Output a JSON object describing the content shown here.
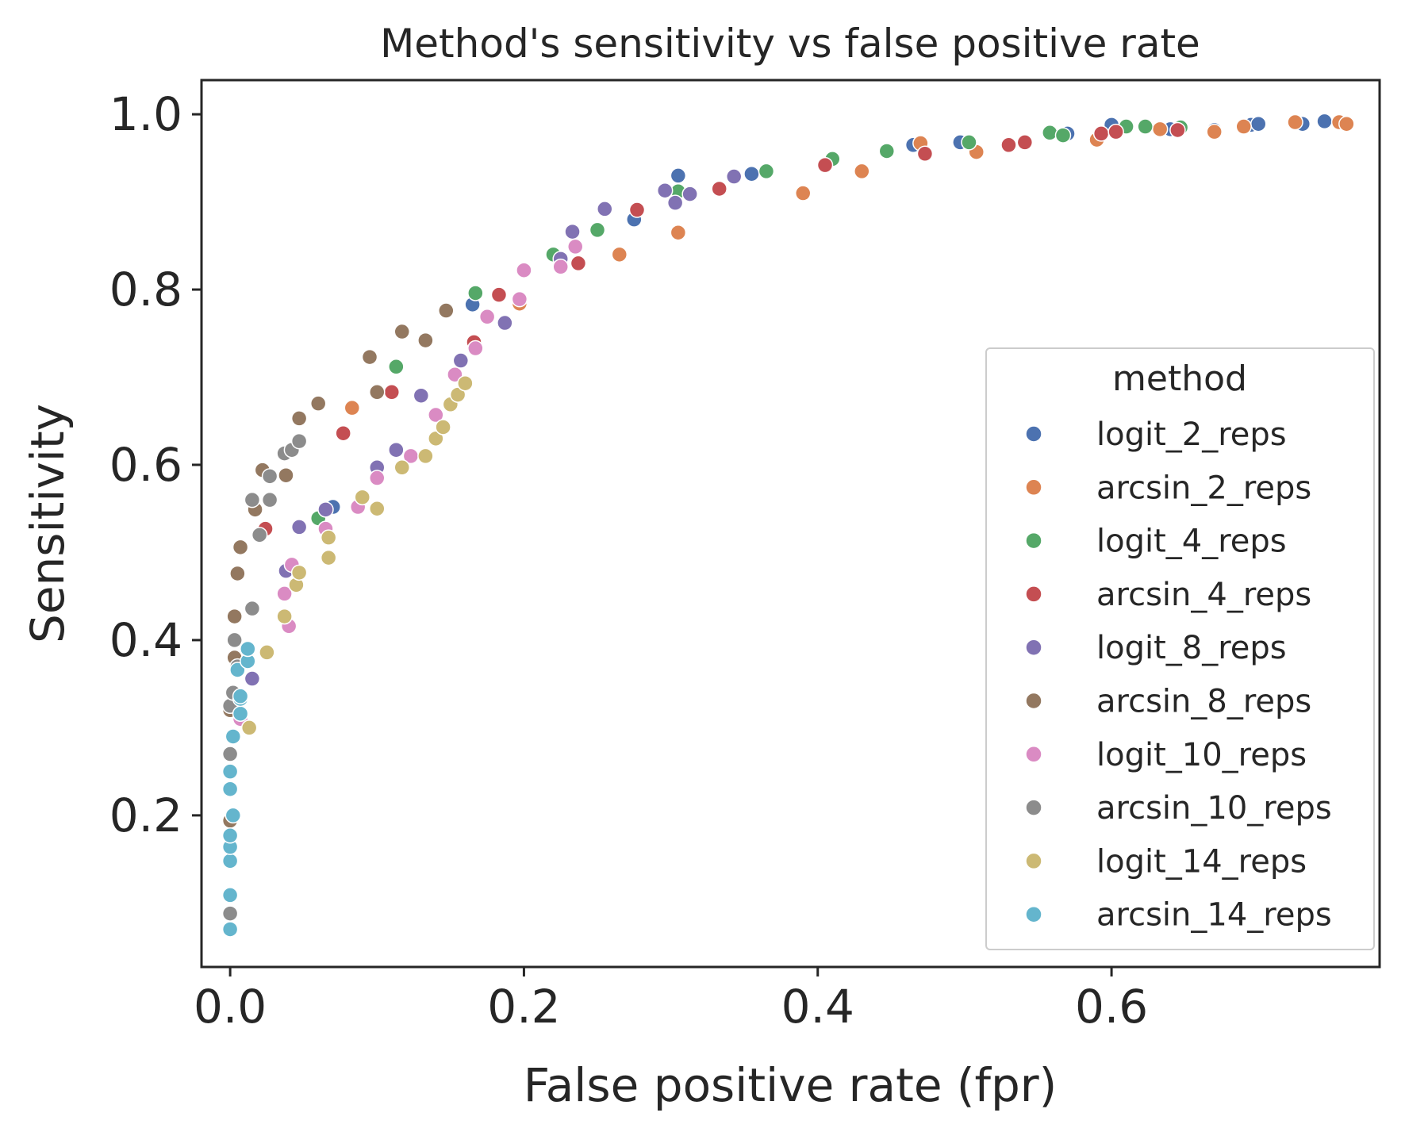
{
  "chart_data": {
    "type": "scatter",
    "title": "Method's sensitivity vs false positive rate",
    "xlabel": "False positive rate (fpr)",
    "ylabel": "Sensitivity",
    "xlim": [
      -0.0195,
      0.7825
    ],
    "ylim": [
      0.027,
      1.039
    ],
    "xticks": [
      0.0,
      0.2,
      0.4,
      0.6
    ],
    "yticks": [
      0.2,
      0.4,
      0.6,
      0.8,
      1.0
    ],
    "xtick_labels": [
      "0.0",
      "0.2",
      "0.4",
      "0.6"
    ],
    "ytick_labels": [
      "0.2",
      "0.4",
      "0.6",
      "0.8",
      "1.0"
    ],
    "grid": false,
    "legend": {
      "title": "method",
      "placement": "center-right"
    },
    "series": [
      {
        "name": "logit_2_reps",
        "color": "#4c72b0",
        "points": [
          [
            0.07,
            0.552
          ],
          [
            0.165,
            0.783
          ],
          [
            0.275,
            0.88
          ],
          [
            0.305,
            0.93
          ],
          [
            0.355,
            0.932
          ],
          [
            0.465,
            0.965
          ],
          [
            0.497,
            0.968
          ],
          [
            0.57,
            0.978
          ],
          [
            0.6,
            0.988
          ],
          [
            0.64,
            0.983
          ],
          [
            0.67,
            0.982
          ],
          [
            0.695,
            0.988
          ],
          [
            0.7,
            0.989
          ],
          [
            0.73,
            0.989
          ],
          [
            0.745,
            0.992
          ]
        ]
      },
      {
        "name": "arcsin_2_reps",
        "color": "#dd8452",
        "points": [
          [
            0.083,
            0.665
          ],
          [
            0.197,
            0.784
          ],
          [
            0.265,
            0.84
          ],
          [
            0.305,
            0.865
          ],
          [
            0.39,
            0.91
          ],
          [
            0.43,
            0.935
          ],
          [
            0.47,
            0.967
          ],
          [
            0.508,
            0.957
          ],
          [
            0.59,
            0.971
          ],
          [
            0.633,
            0.983
          ],
          [
            0.67,
            0.98
          ],
          [
            0.69,
            0.986
          ],
          [
            0.725,
            0.991
          ],
          [
            0.755,
            0.991
          ],
          [
            0.76,
            0.989
          ]
        ]
      },
      {
        "name": "logit_4_reps",
        "color": "#55a868",
        "points": [
          [
            0.06,
            0.539
          ],
          [
            0.113,
            0.712
          ],
          [
            0.167,
            0.796
          ],
          [
            0.22,
            0.84
          ],
          [
            0.25,
            0.868
          ],
          [
            0.305,
            0.912
          ],
          [
            0.365,
            0.935
          ],
          [
            0.41,
            0.949
          ],
          [
            0.447,
            0.958
          ],
          [
            0.503,
            0.968
          ],
          [
            0.558,
            0.979
          ],
          [
            0.567,
            0.976
          ],
          [
            0.61,
            0.986
          ],
          [
            0.623,
            0.986
          ],
          [
            0.647,
            0.985
          ]
        ]
      },
      {
        "name": "arcsin_4_reps",
        "color": "#c44e52",
        "points": [
          [
            0.024,
            0.527
          ],
          [
            0.077,
            0.636
          ],
          [
            0.11,
            0.683
          ],
          [
            0.166,
            0.74
          ],
          [
            0.183,
            0.794
          ],
          [
            0.237,
            0.83
          ],
          [
            0.277,
            0.891
          ],
          [
            0.333,
            0.915
          ],
          [
            0.405,
            0.942
          ],
          [
            0.473,
            0.955
          ],
          [
            0.53,
            0.965
          ],
          [
            0.541,
            0.968
          ],
          [
            0.593,
            0.978
          ],
          [
            0.603,
            0.98
          ],
          [
            0.645,
            0.982
          ]
        ]
      },
      {
        "name": "logit_8_reps",
        "color": "#8172b3",
        "points": [
          [
            0.015,
            0.356
          ],
          [
            0.038,
            0.479
          ],
          [
            0.047,
            0.529
          ],
          [
            0.065,
            0.549
          ],
          [
            0.1,
            0.597
          ],
          [
            0.113,
            0.617
          ],
          [
            0.13,
            0.679
          ],
          [
            0.157,
            0.719
          ],
          [
            0.187,
            0.762
          ],
          [
            0.225,
            0.835
          ],
          [
            0.233,
            0.866
          ],
          [
            0.255,
            0.892
          ],
          [
            0.296,
            0.913
          ],
          [
            0.303,
            0.899
          ],
          [
            0.313,
            0.909
          ],
          [
            0.343,
            0.929
          ]
        ]
      },
      {
        "name": "arcsin_8_reps",
        "color": "#937860",
        "points": [
          [
            0.0,
            0.194
          ],
          [
            0.0,
            0.32
          ],
          [
            0.003,
            0.38
          ],
          [
            0.003,
            0.427
          ],
          [
            0.005,
            0.476
          ],
          [
            0.007,
            0.506
          ],
          [
            0.017,
            0.549
          ],
          [
            0.022,
            0.594
          ],
          [
            0.038,
            0.588
          ],
          [
            0.047,
            0.653
          ],
          [
            0.06,
            0.67
          ],
          [
            0.095,
            0.723
          ],
          [
            0.1,
            0.683
          ],
          [
            0.117,
            0.752
          ],
          [
            0.133,
            0.742
          ],
          [
            0.147,
            0.776
          ]
        ]
      },
      {
        "name": "logit_10_reps",
        "color": "#da8bc3",
        "points": [
          [
            0.007,
            0.31
          ],
          [
            0.037,
            0.453
          ],
          [
            0.04,
            0.416
          ],
          [
            0.042,
            0.486
          ],
          [
            0.065,
            0.527
          ],
          [
            0.087,
            0.552
          ],
          [
            0.1,
            0.585
          ],
          [
            0.123,
            0.61
          ],
          [
            0.14,
            0.657
          ],
          [
            0.153,
            0.703
          ],
          [
            0.167,
            0.733
          ],
          [
            0.175,
            0.769
          ],
          [
            0.197,
            0.789
          ],
          [
            0.2,
            0.822
          ],
          [
            0.225,
            0.826
          ],
          [
            0.235,
            0.849
          ]
        ]
      },
      {
        "name": "arcsin_10_reps",
        "color": "#8c8c8c",
        "points": [
          [
            0.0,
            0.088
          ],
          [
            0.0,
            0.27
          ],
          [
            0.0,
            0.27
          ],
          [
            0.0,
            0.325
          ],
          [
            0.002,
            0.34
          ],
          [
            0.003,
            0.4
          ],
          [
            0.005,
            0.37
          ],
          [
            0.015,
            0.436
          ],
          [
            0.015,
            0.56
          ],
          [
            0.02,
            0.52
          ],
          [
            0.027,
            0.56
          ],
          [
            0.027,
            0.587
          ],
          [
            0.037,
            0.613
          ],
          [
            0.042,
            0.617
          ],
          [
            0.047,
            0.627
          ]
        ]
      },
      {
        "name": "logit_14_reps",
        "color": "#ccb974",
        "points": [
          [
            0.013,
            0.3
          ],
          [
            0.025,
            0.386
          ],
          [
            0.037,
            0.427
          ],
          [
            0.045,
            0.463
          ],
          [
            0.047,
            0.477
          ],
          [
            0.067,
            0.494
          ],
          [
            0.067,
            0.517
          ],
          [
            0.09,
            0.563
          ],
          [
            0.1,
            0.55
          ],
          [
            0.117,
            0.597
          ],
          [
            0.133,
            0.61
          ],
          [
            0.14,
            0.63
          ],
          [
            0.145,
            0.643
          ],
          [
            0.15,
            0.669
          ],
          [
            0.155,
            0.68
          ],
          [
            0.16,
            0.693
          ]
        ]
      },
      {
        "name": "arcsin_14_reps",
        "color": "#64b5cd",
        "points": [
          [
            0.0,
            0.07
          ],
          [
            0.0,
            0.109
          ],
          [
            0.0,
            0.148
          ],
          [
            0.0,
            0.164
          ],
          [
            0.0,
            0.177
          ],
          [
            0.0,
            0.23
          ],
          [
            0.0,
            0.25
          ],
          [
            0.002,
            0.2
          ],
          [
            0.002,
            0.29
          ],
          [
            0.007,
            0.316
          ],
          [
            0.007,
            0.333
          ],
          [
            0.007,
            0.336
          ],
          [
            0.005,
            0.366
          ],
          [
            0.012,
            0.376
          ],
          [
            0.012,
            0.39
          ]
        ]
      }
    ]
  }
}
